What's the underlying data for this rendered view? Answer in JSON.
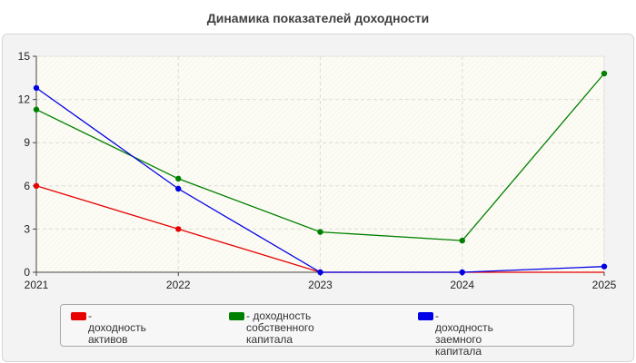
{
  "chart_data": {
    "type": "line",
    "title": "Динамика показателей доходности",
    "x": [
      "2021",
      "2022",
      "2023",
      "2024",
      "2025"
    ],
    "ylim": [
      0,
      15
    ],
    "yticks": [
      "0",
      "3",
      "6",
      "9",
      "12",
      "15"
    ],
    "grid": true,
    "legend_position": "bottom",
    "series": [
      {
        "name": "- доходность активов",
        "color": "#e60000",
        "values": [
          6.0,
          3.0,
          0.0,
          0.0,
          0.0
        ],
        "visible_points": [
          0,
          1
        ]
      },
      {
        "name": "- доходность собственного\nкапитала",
        "color": "#008000",
        "values": [
          11.3,
          6.5,
          2.8,
          2.2,
          13.8
        ],
        "visible_points": [
          0,
          1,
          2,
          3,
          4
        ]
      },
      {
        "name": "- доходность заемного\nкапитала",
        "color": "#0000e6",
        "values": [
          12.8,
          5.8,
          0.0,
          0.0,
          0.4
        ],
        "visible_points": [
          0,
          1,
          2,
          3,
          4
        ]
      }
    ]
  }
}
